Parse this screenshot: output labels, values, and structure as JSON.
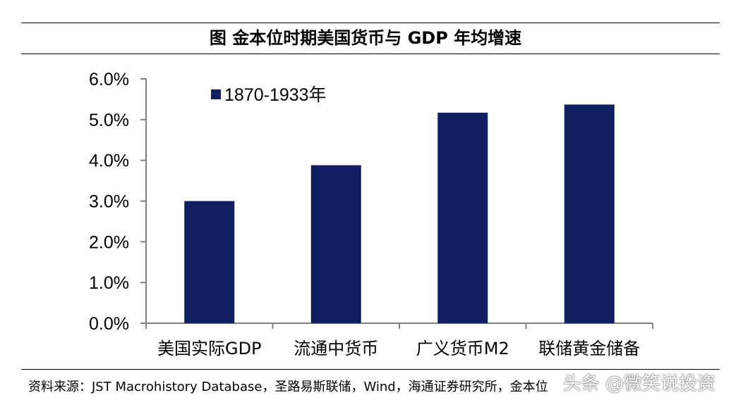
{
  "title": "图 金本位时期美国货币与 GDP 年均增速",
  "source": "资料来源：JST Macrohistory Database，圣路易斯联储，Wind，海通证券研究所，金本位",
  "watermark": "头条 @微笑说投资",
  "colors": {
    "bar": "#0f1f5f",
    "axis": "#808080",
    "text": "#000000"
  },
  "chart_data": {
    "type": "bar",
    "categories": [
      "美国实际GDP",
      "流通中货币",
      "广义货币M2",
      "联储黄金储备"
    ],
    "series": [
      {
        "name": "1870-1933年",
        "values": [
          3.0,
          3.88,
          5.17,
          5.37
        ]
      }
    ],
    "ylim": [
      0,
      6.0
    ],
    "yticks": [
      "0.0%",
      "1.0%",
      "2.0%",
      "3.0%",
      "4.0%",
      "5.0%",
      "6.0%"
    ],
    "title": "",
    "xlabel": "",
    "ylabel": "",
    "grid": false,
    "legend_position": "top-left"
  }
}
